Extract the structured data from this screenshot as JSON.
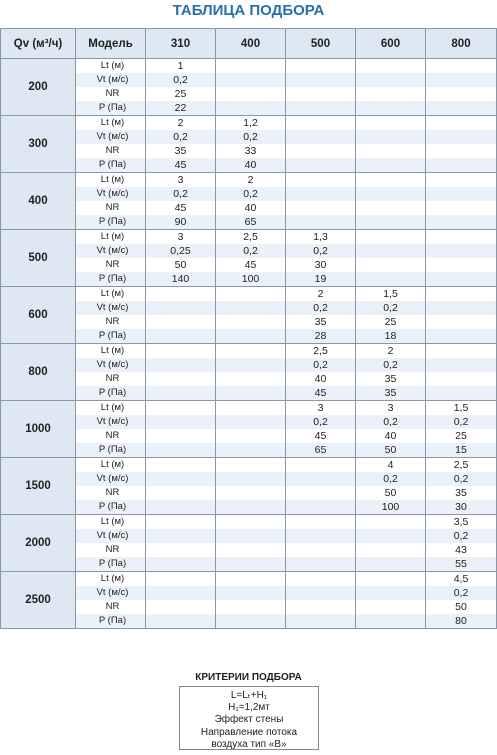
{
  "header": {
    "title": "ТАБЛИЦА ПОДБОРА"
  },
  "table": {
    "columns": [
      "Qv (м³/ч)",
      "Модель",
      "310",
      "400",
      "500",
      "600",
      "800"
    ],
    "row_labels": [
      "Lt (м)",
      "Vt (м/с)",
      "NR",
      "P (Па)"
    ],
    "groups": [
      {
        "qv": "200",
        "rows": [
          [
            "1",
            null,
            null,
            null,
            null
          ],
          [
            "0,2",
            null,
            null,
            null,
            null
          ],
          [
            "25",
            null,
            null,
            null,
            null
          ],
          [
            "22",
            null,
            null,
            null,
            null
          ]
        ]
      },
      {
        "qv": "300",
        "rows": [
          [
            "2",
            "1,2",
            null,
            null,
            null
          ],
          [
            "0,2",
            "0,2",
            null,
            null,
            null
          ],
          [
            "35",
            "33",
            null,
            null,
            null
          ],
          [
            "45",
            "40",
            null,
            null,
            null
          ]
        ]
      },
      {
        "qv": "400",
        "rows": [
          [
            "3",
            "2",
            null,
            null,
            null
          ],
          [
            "0,2",
            "0,2",
            null,
            null,
            null
          ],
          [
            "45",
            "40",
            null,
            null,
            null
          ],
          [
            "90",
            "65",
            null,
            null,
            null
          ]
        ]
      },
      {
        "qv": "500",
        "rows": [
          [
            "3",
            "2,5",
            "1,3",
            null,
            null
          ],
          [
            "0,25",
            "0,2",
            "0,2",
            null,
            null
          ],
          [
            "50",
            "45",
            "30",
            null,
            null
          ],
          [
            "140",
            "100",
            "19",
            null,
            null
          ]
        ]
      },
      {
        "qv": "600",
        "rows": [
          [
            null,
            null,
            "2",
            "1,5",
            null
          ],
          [
            null,
            null,
            "0,2",
            "0,2",
            null
          ],
          [
            null,
            null,
            "35",
            "25",
            null
          ],
          [
            null,
            null,
            "28",
            "18",
            null
          ]
        ]
      },
      {
        "qv": "800",
        "rows": [
          [
            null,
            null,
            "2,5",
            "2",
            null
          ],
          [
            null,
            null,
            "0,2",
            "0,2",
            null
          ],
          [
            null,
            null,
            "40",
            "35",
            null
          ],
          [
            null,
            null,
            "45",
            "35",
            null
          ]
        ]
      },
      {
        "qv": "1000",
        "rows": [
          [
            null,
            null,
            "3",
            "3",
            "1,5"
          ],
          [
            null,
            null,
            "0,2",
            "0,2",
            "0,2"
          ],
          [
            null,
            null,
            "45",
            "40",
            "25"
          ],
          [
            null,
            null,
            "65",
            "50",
            "15"
          ]
        ]
      },
      {
        "qv": "1500",
        "rows": [
          [
            null,
            null,
            null,
            "4",
            "2,5"
          ],
          [
            null,
            null,
            null,
            "0,2",
            "0,2"
          ],
          [
            null,
            null,
            null,
            "50",
            "35"
          ],
          [
            null,
            null,
            null,
            "100",
            "30"
          ]
        ]
      },
      {
        "qv": "2000",
        "rows": [
          [
            null,
            null,
            null,
            null,
            "3,5"
          ],
          [
            null,
            null,
            null,
            null,
            "0,2"
          ],
          [
            null,
            null,
            null,
            null,
            "43"
          ],
          [
            null,
            null,
            null,
            null,
            "55"
          ]
        ]
      },
      {
        "qv": "2500",
        "rows": [
          [
            null,
            null,
            null,
            null,
            "4,5"
          ],
          [
            null,
            null,
            null,
            null,
            "0,2"
          ],
          [
            null,
            null,
            null,
            null,
            "50"
          ],
          [
            null,
            null,
            null,
            null,
            "80"
          ]
        ]
      }
    ]
  },
  "criteria": {
    "title": "КРИТЕРИИ ПОДБОРА",
    "lines": [
      "L=Lₜ+H₁",
      "H₁=1,2мт",
      "Эффект стены",
      "Направление потока",
      "воздуха тип «В»"
    ]
  }
}
